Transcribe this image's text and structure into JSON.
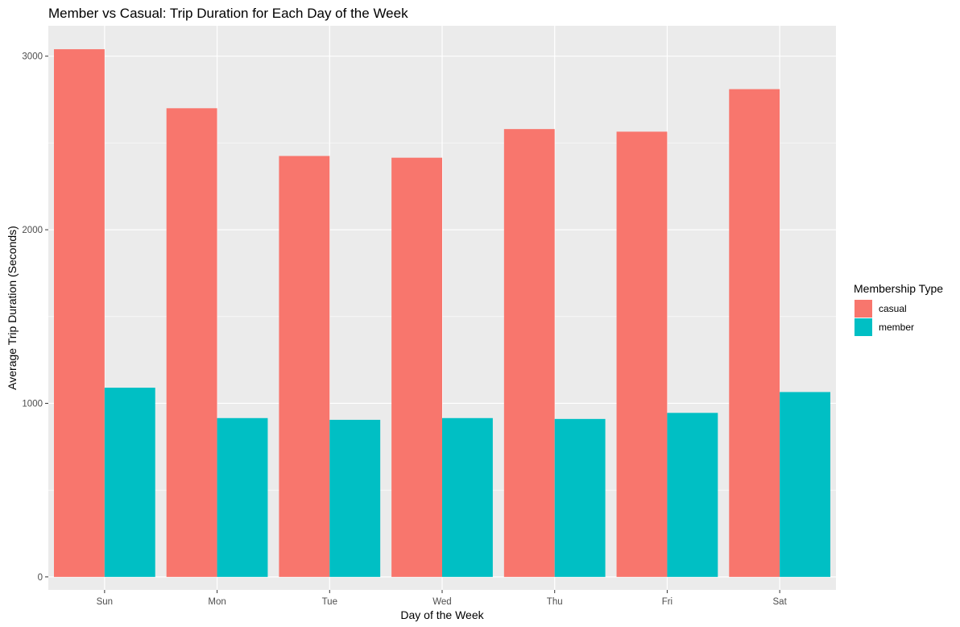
{
  "chart_data": {
    "type": "bar",
    "title": "Member vs Casual: Trip Duration for Each Day of the Week",
    "xlabel": "Day of the Week",
    "ylabel": "Average Trip Duration (Seconds)",
    "categories": [
      "Sun",
      "Mon",
      "Tue",
      "Wed",
      "Thu",
      "Fri",
      "Sat"
    ],
    "series": [
      {
        "name": "casual",
        "color": "#F8766D",
        "values": [
          3040,
          2700,
          2425,
          2415,
          2580,
          2565,
          2810
        ]
      },
      {
        "name": "member",
        "color": "#00BFC4",
        "values": [
          1090,
          915,
          905,
          915,
          910,
          945,
          1065
        ]
      }
    ],
    "ylim": [
      -75,
      3175
    ],
    "y_ticks": [
      0,
      1000,
      2000,
      3000
    ],
    "y_tick_labels": [
      "0",
      "1000",
      "2000",
      "3000"
    ],
    "y_minor_ticks": [
      500,
      1500,
      2500
    ],
    "grid": true,
    "panel_background": "#EBEBEB",
    "grid_color": "#FFFFFF",
    "legend": {
      "title": "Membership Type",
      "position": "right",
      "items": [
        "casual",
        "member"
      ]
    }
  }
}
